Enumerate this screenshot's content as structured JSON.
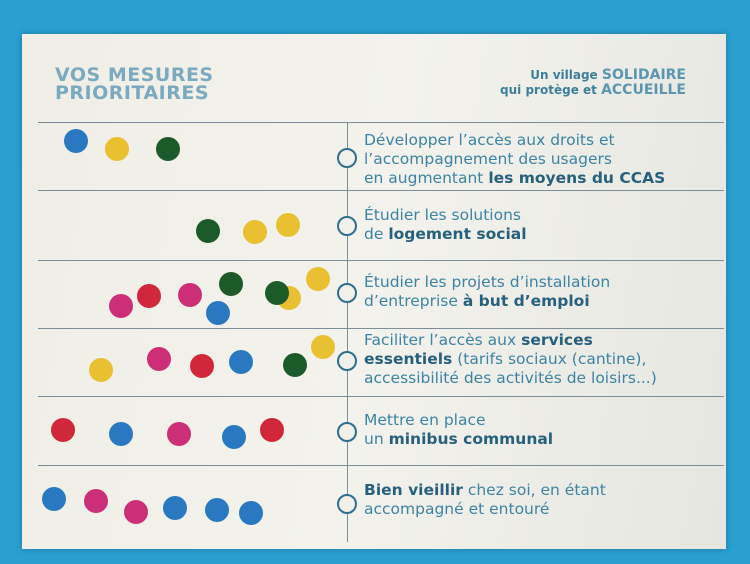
{
  "header": {
    "title_line1": "VOS MESURES",
    "title_line2": "PRIORITAIRES",
    "slogan_a": "Un village ",
    "slogan_b": "SOLIDAIRE",
    "slogan_c": "qui protège et ",
    "slogan_d": "ACCUEILLE"
  },
  "colors": {
    "blue": "#2a78c0",
    "yellow": "#e8c032",
    "green": "#1d5a2a",
    "red": "#d0283a",
    "magenta": "#cc2e78",
    "background": "#2a9fd0"
  },
  "measures": [
    {
      "parts": [
        [
          "Développer l’accès aux droits et\nl’accompagnement des usagers\nen augmentant ",
          ""
        ],
        [
          "les moyens du CCAS",
          "b"
        ]
      ],
      "dots": [
        "blue",
        "yellow",
        "green"
      ]
    },
    {
      "parts": [
        [
          "Étudier les solutions\nde ",
          ""
        ],
        [
          "logement social",
          "b"
        ]
      ],
      "dots": [
        "green",
        "yellow",
        "yellow"
      ]
    },
    {
      "parts": [
        [
          "Étudier les projets d’installation\nd’entreprise ",
          ""
        ],
        [
          "à but d’emploi",
          "b"
        ]
      ],
      "dots": [
        "magenta",
        "red",
        "magenta",
        "blue",
        "green",
        "yellow",
        "green",
        "yellow"
      ]
    },
    {
      "parts": [
        [
          "Faciliter l’accès aux ",
          ""
        ],
        [
          "services\nessentiels",
          "b"
        ],
        [
          " (tarifs sociaux (cantine),\naccessibilité des activités de loisirs...)",
          ""
        ]
      ],
      "dots": [
        "yellow",
        "magenta",
        "red",
        "blue",
        "green",
        "yellow"
      ]
    },
    {
      "parts": [
        [
          "Mettre en place\nun ",
          ""
        ],
        [
          "minibus communal",
          "b"
        ]
      ],
      "dots": [
        "red",
        "blue",
        "magenta",
        "blue",
        "red"
      ]
    },
    {
      "parts": [
        [
          "Bien vieillir",
          "b"
        ],
        [
          " chez soi, en étant\naccompagné et entouré",
          ""
        ]
      ],
      "dots": [
        "blue",
        "magenta",
        "magenta",
        "blue",
        "blue",
        "blue"
      ]
    }
  ]
}
